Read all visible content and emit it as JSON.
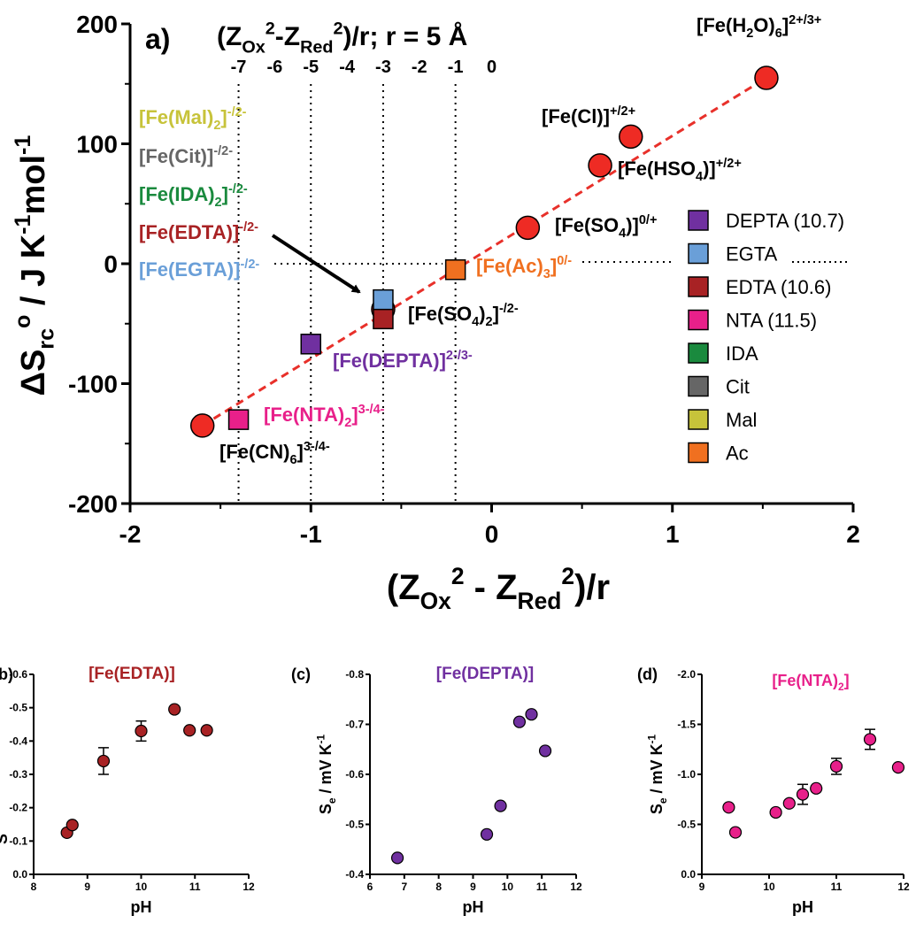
{
  "colors": {
    "red": "#ee2b24",
    "dashed": "#e8302a",
    "DEPTA": "#7030a0",
    "EGTA": "#6a9fd8",
    "EDTA": "#a82224",
    "NTA": "#e8208a",
    "IDA": "#1a8a3e",
    "Cit": "#666666",
    "Mal": "#c7c33a",
    "Ac": "#f07020",
    "grey_label": "#707070"
  },
  "chart_data": [
    {
      "type": "scatter",
      "panel": "a)",
      "xlabel_parts": [
        "(Z",
        "Ox",
        "2",
        " - Z",
        "Red",
        "2",
        ")/r"
      ],
      "ylabel_parts": [
        "ΔS",
        "rc",
        "o",
        " / J K",
        "-1",
        "mol",
        "-1"
      ],
      "x_ticks": [
        "-2",
        "-1",
        "0",
        "1",
        "2"
      ],
      "y_ticks": [
        "200",
        "100",
        "0",
        "-100",
        "-200"
      ],
      "xlim": [
        -2,
        2
      ],
      "ylim": [
        -200,
        200
      ],
      "top_axis_title_parts": [
        "(Z",
        "Ox",
        "2",
        "-Z",
        "Red",
        "2",
        ")/r; r = 5 Å"
      ],
      "top_ticks": [
        {
          "label": "-7",
          "x": -1.4
        },
        {
          "label": "-6",
          "x": -1.2
        },
        {
          "label": "-5",
          "x": -1.0
        },
        {
          "label": "-4",
          "x": -0.8
        },
        {
          "label": "-3",
          "x": -0.6
        },
        {
          "label": "-2",
          "x": -0.4
        },
        {
          "label": "-1",
          "x": -0.2
        },
        {
          "label": "0",
          "x": 0.0
        }
      ],
      "vertical_guides_x": [
        -1.4,
        -1.0,
        -0.6,
        -0.2
      ],
      "horizontal_guide_y": 0,
      "fit_line": {
        "x": [
          -1.6,
          1.52
        ],
        "y": [
          -135,
          155
        ]
      },
      "circles": [
        {
          "name": "[Fe(CN)6]3-/4-",
          "x": -1.6,
          "y": -135
        },
        {
          "name": "[Fe(SO4)2]-/2-",
          "x": -0.6,
          "y": -38
        },
        {
          "name": "[Fe(SO4)]0/+",
          "x": 0.2,
          "y": 30
        },
        {
          "name": "[Fe(HSO4)]+/2+",
          "x": 0.6,
          "y": 82
        },
        {
          "name": "[Fe(Cl)]+/2+",
          "x": 0.77,
          "y": 106
        },
        {
          "name": "[Fe(H2O)6]2+/3+",
          "x": 1.52,
          "y": 155
        }
      ],
      "squares": [
        {
          "series": "NTA",
          "x": -1.4,
          "y": -130
        },
        {
          "series": "DEPTA",
          "x": -1.0,
          "y": -67
        },
        {
          "series": "EDTA",
          "x": -0.6,
          "y": -46
        },
        {
          "series": "EGTA",
          "x": -0.6,
          "y": -30
        },
        {
          "series": "Ac",
          "x": -0.2,
          "y": -5
        }
      ],
      "legend": [
        {
          "key": "DEPTA",
          "label": "DEPTA (10.7)"
        },
        {
          "key": "EGTA",
          "label": "EGTA"
        },
        {
          "key": "EDTA",
          "label": "EDTA (10.6)"
        },
        {
          "key": "NTA",
          "label": "NTA (11.5)"
        },
        {
          "key": "IDA",
          "label": "IDA"
        },
        {
          "key": "Cit",
          "label": "Cit"
        },
        {
          "key": "Mal",
          "label": "Mal"
        },
        {
          "key": "Ac",
          "label": "Ac"
        }
      ],
      "left_labels": [
        {
          "key": "Mal",
          "base": "[Fe(Mal)",
          "sub": "2",
          "close": "]",
          "sup": "-/2-"
        },
        {
          "key": "Cit",
          "base": "[Fe(Cit)]",
          "sub": "",
          "close": "",
          "sup": "-/2-"
        },
        {
          "key": "IDA",
          "base": "[Fe(IDA)",
          "sub": "2",
          "close": "]",
          "sup": "-/2-"
        },
        {
          "key": "EDTA",
          "base": "[Fe(EDTA)]",
          "sub": "",
          "close": "",
          "sup": "-/2-"
        },
        {
          "key": "EGTA",
          "base": "[Fe(EGTA)]",
          "sub": "",
          "close": "",
          "sup": "-/2-"
        }
      ],
      "point_labels": {
        "h2o": {
          "base": "[Fe(H",
          "sub1": "2",
          "mid": "O)",
          "sub2": "6",
          "close": "]",
          "sup": "2+/3+"
        },
        "cl": {
          "base": "[Fe(Cl)]",
          "sup": "+/2+"
        },
        "hso4": {
          "base": "[Fe(HSO",
          "sub": "4",
          "close": ")]",
          "sup": "+/2+"
        },
        "so4": {
          "base": "[Fe(SO",
          "sub": "4",
          "close": ")]",
          "sup": "0/+"
        },
        "ac": {
          "base": "[Fe(Ac)",
          "sub": "3",
          "close": "]",
          "sup": "0/-"
        },
        "so42": {
          "base": "[Fe(SO",
          "sub": "4",
          "mid": ")",
          "sub2": "2",
          "close": "]",
          "sup": "-/2-"
        },
        "depta": {
          "base": "[Fe(DEPTA)]",
          "sup": "2-/3-"
        },
        "nta": {
          "base": "[Fe(NTA)",
          "sub": "2",
          "close": "]",
          "sup": "3-/4-"
        },
        "cn": {
          "base": "[Fe(CN)",
          "sub": "6",
          "close": "]",
          "sup": "3-/4-"
        }
      }
    },
    {
      "type": "scatter",
      "panel": "(b)",
      "title": "[Fe(EDTA)]",
      "xlabel": "pH",
      "ylabel": "S",
      "x_ticks": [
        "8",
        "9",
        "10",
        "11",
        "12"
      ],
      "y_ticks": [
        "0.0",
        "-0.1",
        "-0.2",
        "-0.3",
        "-0.4",
        "-0.5",
        "-0.6"
      ],
      "xlim": [
        8,
        12
      ],
      "ylim": [
        0,
        -0.6
      ],
      "color_key": "EDTA",
      "points": [
        {
          "x": 8.62,
          "y": -0.125,
          "err": 0
        },
        {
          "x": 8.72,
          "y": -0.148,
          "err": 0
        },
        {
          "x": 9.3,
          "y": -0.34,
          "err": 0.04
        },
        {
          "x": 10.0,
          "y": -0.43,
          "err": 0.03
        },
        {
          "x": 10.62,
          "y": -0.495,
          "err": 0
        },
        {
          "x": 10.9,
          "y": -0.432,
          "err": 0
        },
        {
          "x": 11.22,
          "y": -0.432,
          "err": 0
        }
      ]
    },
    {
      "type": "scatter",
      "panel": "(c)",
      "title": "[Fe(DEPTA)]",
      "xlabel": "pH",
      "ylabel_parts": [
        "S",
        "e",
        " / mV K",
        "-1"
      ],
      "x_ticks": [
        "6",
        "7",
        "8",
        "9",
        "10",
        "11",
        "12"
      ],
      "y_ticks": [
        "-0.4",
        "-0.5",
        "-0.6",
        "-0.7",
        "-0.8"
      ],
      "xlim": [
        6,
        12
      ],
      "ylim": [
        -0.4,
        -0.8
      ],
      "color_key": "DEPTA",
      "points": [
        {
          "x": 6.8,
          "y": -0.433,
          "err": 0
        },
        {
          "x": 9.4,
          "y": -0.48,
          "err": 0
        },
        {
          "x": 9.8,
          "y": -0.537,
          "err": 0
        },
        {
          "x": 10.35,
          "y": -0.705,
          "err": 0
        },
        {
          "x": 10.7,
          "y": -0.72,
          "err": 0
        },
        {
          "x": 11.1,
          "y": -0.647,
          "err": 0
        }
      ]
    },
    {
      "type": "scatter",
      "panel": "(d)",
      "title_parts": [
        "[Fe(NTA)",
        "2",
        "]"
      ],
      "xlabel": "pH",
      "ylabel_parts": [
        "S",
        "e",
        " / mV K",
        "-1"
      ],
      "x_ticks": [
        "9",
        "10",
        "11",
        "12"
      ],
      "y_ticks": [
        "0.0",
        "-0.5",
        "-1.0",
        "-1.5",
        "-2.0"
      ],
      "xlim": [
        9,
        12
      ],
      "ylim": [
        0,
        -2.0
      ],
      "color_key": "NTA",
      "points": [
        {
          "x": 9.4,
          "y": -0.67,
          "err": 0
        },
        {
          "x": 9.5,
          "y": -0.42,
          "err": 0
        },
        {
          "x": 10.1,
          "y": -0.62,
          "err": 0
        },
        {
          "x": 10.3,
          "y": -0.71,
          "err": 0
        },
        {
          "x": 10.5,
          "y": -0.8,
          "err": 0.1
        },
        {
          "x": 10.7,
          "y": -0.86,
          "err": 0
        },
        {
          "x": 11.0,
          "y": -1.08,
          "err": 0.08
        },
        {
          "x": 11.5,
          "y": -1.35,
          "err": 0.1
        },
        {
          "x": 11.92,
          "y": -1.07,
          "err": 0
        }
      ]
    }
  ]
}
